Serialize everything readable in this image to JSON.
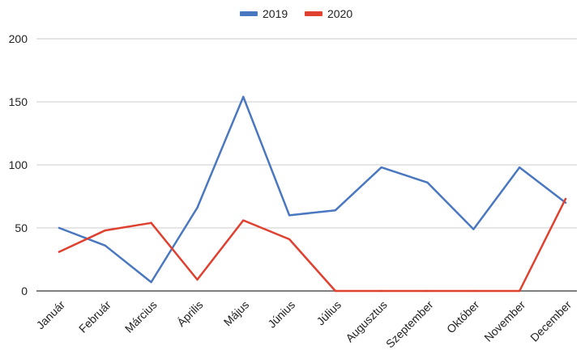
{
  "chart_data": {
    "type": "line",
    "title": "",
    "xlabel": "",
    "ylabel": "",
    "categories": [
      "Január",
      "Február",
      "Március",
      "Április",
      "Május",
      "Június",
      "Július",
      "Augusztus",
      "Szeptember",
      "Október",
      "November",
      "December"
    ],
    "series": [
      {
        "name": "2019",
        "color": "#4a78c0",
        "values": [
          50,
          36,
          7,
          66,
          154,
          60,
          64,
          98,
          86,
          49,
          98,
          70
        ]
      },
      {
        "name": "2020",
        "color": "#e04030",
        "values": [
          31,
          48,
          54,
          9,
          56,
          41,
          0,
          0,
          0,
          0,
          0,
          73
        ]
      }
    ],
    "ylim": [
      0,
      200
    ],
    "yticks": [
      "0",
      "50",
      "100",
      "150",
      "200"
    ],
    "grid": "horizontal",
    "legend": "top-center"
  }
}
